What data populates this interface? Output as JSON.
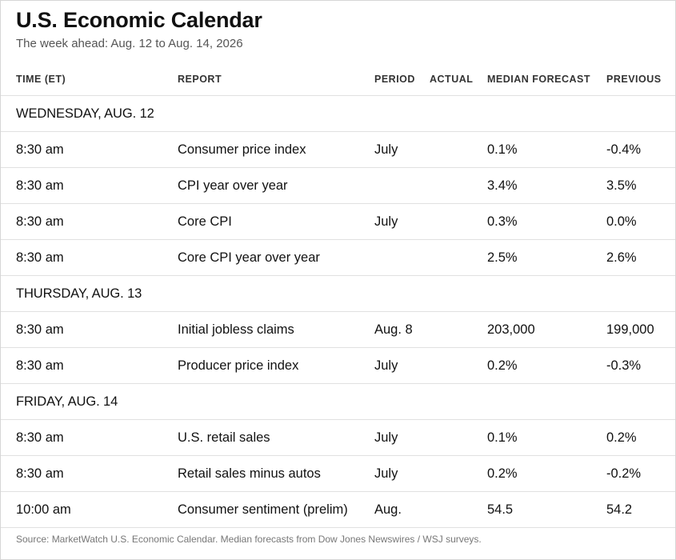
{
  "title": "U.S. Economic Calendar",
  "subtitle": "The week ahead: Aug. 12 to Aug. 14, 2026",
  "columns": {
    "time": "TIME (ET)",
    "report": "REPORT",
    "period": "PERIOD",
    "actual": "ACTUAL",
    "forecast": "MEDIAN FORECAST",
    "previous": "PREVIOUS"
  },
  "days": [
    {
      "label": "WEDNESDAY, AUG. 12",
      "rows": [
        {
          "time": "8:30 am",
          "report": "Consumer price index",
          "period": "July",
          "actual": "",
          "forecast": "0.1%",
          "previous": "-0.4%"
        },
        {
          "time": "8:30 am",
          "report": "CPI year over year",
          "period": "",
          "actual": "",
          "forecast": "3.4%",
          "previous": "3.5%"
        },
        {
          "time": "8:30 am",
          "report": "Core CPI",
          "period": "July",
          "actual": "",
          "forecast": "0.3%",
          "previous": "0.0%"
        },
        {
          "time": "8:30 am",
          "report": "Core CPI year over year",
          "period": "",
          "actual": "",
          "forecast": "2.5%",
          "previous": "2.6%"
        }
      ]
    },
    {
      "label": "THURSDAY, AUG. 13",
      "rows": [
        {
          "time": "8:30 am",
          "report": "Initial jobless claims",
          "period": "Aug. 8",
          "actual": "",
          "forecast": "203,000",
          "previous": "199,000"
        },
        {
          "time": "8:30 am",
          "report": "Producer price index",
          "period": "July",
          "actual": "",
          "forecast": "0.2%",
          "previous": "-0.3%"
        }
      ]
    },
    {
      "label": "FRIDAY, AUG. 14",
      "rows": [
        {
          "time": "8:30 am",
          "report": "U.S. retail sales",
          "period": "July",
          "actual": "",
          "forecast": "0.1%",
          "previous": "0.2%"
        },
        {
          "time": "8:30 am",
          "report": "Retail sales minus autos",
          "period": "July",
          "actual": "",
          "forecast": "0.2%",
          "previous": "-0.2%"
        },
        {
          "time": "10:00 am",
          "report": "Consumer sentiment (prelim)",
          "period": "Aug.",
          "actual": "",
          "forecast": "54.5",
          "previous": "54.2"
        }
      ]
    }
  ],
  "source": "Source: MarketWatch U.S. Economic Calendar. Median forecasts from Dow Jones Newswires / WSJ surveys."
}
